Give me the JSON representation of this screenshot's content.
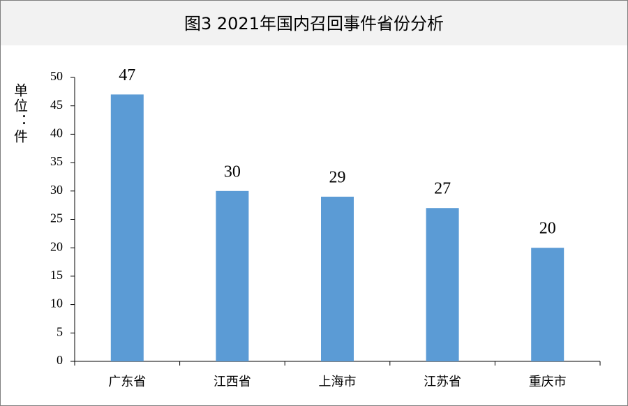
{
  "chart_data": {
    "type": "bar",
    "title": "图3 2021年国内召回事件省份分析",
    "y_label": "单位：件",
    "categories": [
      "广东省",
      "江西省",
      "上海市",
      "江苏省",
      "重庆市"
    ],
    "values": [
      47,
      30,
      29,
      27,
      20
    ],
    "color": "#5b9bd5",
    "ylim": [
      0,
      50
    ],
    "yticks": [
      0,
      5,
      10,
      15,
      20,
      25,
      30,
      35,
      40,
      45,
      50
    ],
    "grid": false
  }
}
